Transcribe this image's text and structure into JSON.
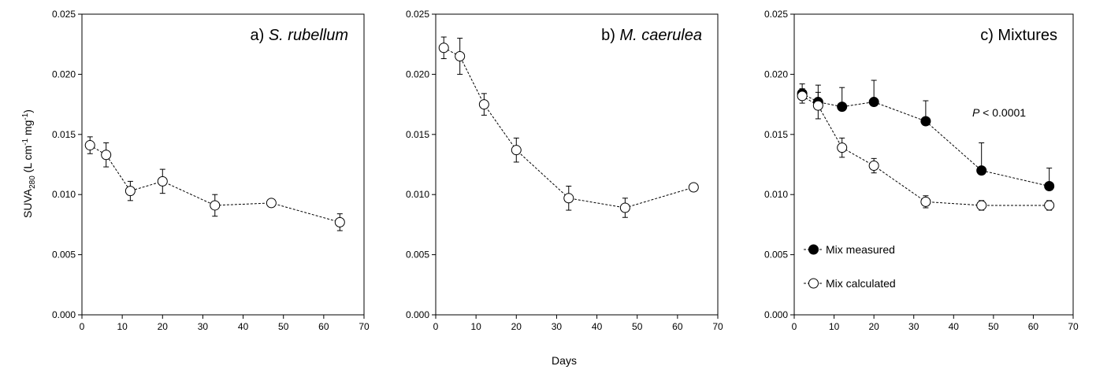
{
  "figure": {
    "shared_xlabel": "Days",
    "ylabel_parts": [
      "SUVA",
      "280",
      " (L cm",
      "-1",
      " mg",
      "-1",
      ")"
    ]
  },
  "chart_data": [
    {
      "type": "line",
      "panel_label": "a) ",
      "panel_species": "S. rubellum",
      "xlim": [
        0,
        70
      ],
      "ylim": [
        0.0,
        0.025
      ],
      "x_ticks": [
        "0",
        "10",
        "20",
        "30",
        "40",
        "50",
        "60",
        "70"
      ],
      "y_ticks": [
        "0.000",
        "0.005",
        "0.010",
        "0.015",
        "0.020",
        "0.025"
      ],
      "grid": false,
      "series": [
        {
          "marker": "open-circle",
          "x": [
            2,
            6,
            12,
            20,
            33,
            47,
            64
          ],
          "y": [
            0.0141,
            0.0133,
            0.0103,
            0.0111,
            0.0091,
            0.0093,
            0.0077
          ],
          "err": [
            0.0007,
            0.001,
            0.0008,
            0.001,
            0.0009,
            0.0002,
            0.0007
          ]
        }
      ]
    },
    {
      "type": "line",
      "panel_label": "b) ",
      "panel_species": "M. caerulea",
      "xlim": [
        0,
        70
      ],
      "ylim": [
        0.0,
        0.025
      ],
      "x_ticks": [
        "0",
        "10",
        "20",
        "30",
        "40",
        "50",
        "60",
        "70"
      ],
      "y_ticks": [
        "0.000",
        "0.005",
        "0.010",
        "0.015",
        "0.020",
        "0.025"
      ],
      "grid": false,
      "series": [
        {
          "marker": "open-circle",
          "x": [
            2,
            6,
            12,
            20,
            33,
            47,
            64
          ],
          "y": [
            0.0222,
            0.0215,
            0.0175,
            0.0137,
            0.0097,
            0.0089,
            0.0106
          ],
          "err": [
            0.0009,
            0.0015,
            0.0009,
            0.001,
            0.001,
            0.0008,
            0.0003
          ]
        }
      ]
    },
    {
      "type": "line",
      "panel_label": "c) Mixtures",
      "panel_species": "",
      "xlim": [
        0,
        70
      ],
      "ylim": [
        0.0,
        0.025
      ],
      "x_ticks": [
        "0",
        "10",
        "20",
        "30",
        "40",
        "50",
        "60",
        "70"
      ],
      "y_ticks": [
        "0.000",
        "0.005",
        "0.010",
        "0.015",
        "0.020",
        "0.025"
      ],
      "grid": false,
      "annotation_italic": "P",
      "annotation_rest": " < 0.0001",
      "legend_position": "bottom-left",
      "series": [
        {
          "name": "Mix measured",
          "marker": "filled-circle",
          "x": [
            2,
            6,
            12,
            20,
            33,
            47,
            64
          ],
          "y": [
            0.0184,
            0.0177,
            0.0173,
            0.0177,
            0.0161,
            0.012,
            0.0107
          ],
          "err": [
            0.0008,
            0.0014,
            0.0016,
            0.0018,
            0.0017,
            0.0023,
            0.0015
          ]
        },
        {
          "name": "Mix calculated",
          "marker": "open-circle",
          "x": [
            2,
            6,
            12,
            20,
            33,
            47,
            64
          ],
          "y": [
            0.0182,
            0.0174,
            0.0139,
            0.0124,
            0.0094,
            0.0091,
            0.0091
          ],
          "err": [
            0.0006,
            0.0011,
            0.0008,
            0.0006,
            0.0005,
            0.0004,
            0.0004
          ]
        }
      ]
    }
  ]
}
